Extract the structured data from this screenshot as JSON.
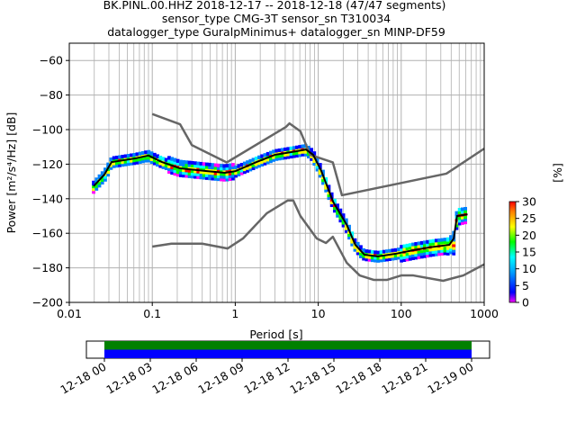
{
  "chart_data": {
    "type": "heatmap",
    "title_lines": [
      "BK.PINL.00.HHZ   2018-12-17 -- 2018-12-18  (47/47 segments)",
      "sensor_type CMG-3T sensor_sn T310034",
      "datalogger_type GuralpMinimus+ datalogger_sn MINP-DF59"
    ],
    "xlabel": "Period [s]",
    "ylabel": "Power [m²/s⁴/Hz] [dB]",
    "xscale": "log",
    "xlim": [
      0.01,
      1000
    ],
    "ylim": [
      -200,
      -50
    ],
    "xticks": [
      "0.01",
      "0.1",
      "1",
      "10",
      "100",
      "1000"
    ],
    "yticks": [
      "−60",
      "−80",
      "−100",
      "−120",
      "−140",
      "−160",
      "−180",
      "−200"
    ],
    "grid": true,
    "mean_curve": [
      [
        0.0196,
        -132.8
      ],
      [
        0.0265,
        -126
      ],
      [
        0.0323,
        -118.8
      ],
      [
        0.062,
        -116.7
      ],
      [
        0.09,
        -115
      ],
      [
        0.131,
        -118.8
      ],
      [
        0.216,
        -122.4
      ],
      [
        0.455,
        -124
      ],
      [
        0.75,
        -125
      ],
      [
        1.01,
        -124
      ],
      [
        1.8,
        -118.8
      ],
      [
        3.0,
        -114.6
      ],
      [
        5.5,
        -112.5
      ],
      [
        7.1,
        -111.5
      ],
      [
        8.7,
        -114.6
      ],
      [
        10.9,
        -124
      ],
      [
        15.2,
        -142
      ],
      [
        22,
        -155
      ],
      [
        28,
        -166.7
      ],
      [
        36,
        -172.4
      ],
      [
        52,
        -173.4
      ],
      [
        85,
        -171.9
      ],
      [
        140,
        -169.8
      ],
      [
        230,
        -168
      ],
      [
        380,
        -166.7
      ],
      [
        430,
        -163
      ],
      [
        470,
        -150
      ],
      [
        630,
        -149
      ]
    ],
    "nhnm": [
      [
        0.1,
        -91
      ],
      [
        0.216,
        -96.9
      ],
      [
        0.3,
        -109
      ],
      [
        0.79,
        -119
      ],
      [
        4.1,
        -98.4
      ],
      [
        4.5,
        -96.4
      ],
      [
        6.1,
        -101
      ],
      [
        8,
        -114.6
      ],
      [
        15,
        -119
      ],
      [
        19.3,
        -138
      ],
      [
        350,
        -125.5
      ],
      [
        1000,
        -111
      ]
    ],
    "nlnm": [
      [
        0.1,
        -167.7
      ],
      [
        0.17,
        -166
      ],
      [
        0.4,
        -166
      ],
      [
        0.81,
        -168.8
      ],
      [
        1.24,
        -163
      ],
      [
        2.4,
        -148.4
      ],
      [
        4.3,
        -141
      ],
      [
        5,
        -141
      ],
      [
        6.1,
        -150
      ],
      [
        9.6,
        -163
      ],
      [
        12.4,
        -165.6
      ],
      [
        15,
        -162
      ],
      [
        22,
        -177
      ],
      [
        31.6,
        -184.4
      ],
      [
        47,
        -187
      ],
      [
        67,
        -187
      ],
      [
        100,
        -184.4
      ],
      [
        140,
        -184.4
      ],
      [
        320,
        -187.5
      ],
      [
        560,
        -184.4
      ],
      [
        1000,
        -178
      ]
    ],
    "colorbar": {
      "label": "[%]",
      "range": [
        0,
        30
      ],
      "ticks": [
        "0",
        "5",
        "10",
        "15",
        "20",
        "25",
        "30"
      ]
    },
    "timeline": {
      "tick_labels": [
        "12-18 00",
        "12-18 03",
        "12-18 06",
        "12-18 09",
        "12-18 12",
        "12-18 15",
        "12-18 18",
        "12-18 21",
        "12-19 00"
      ],
      "coverage_fraction": 1.0,
      "colors": {
        "data": "#008000",
        "used": "#0000ff"
      }
    }
  }
}
